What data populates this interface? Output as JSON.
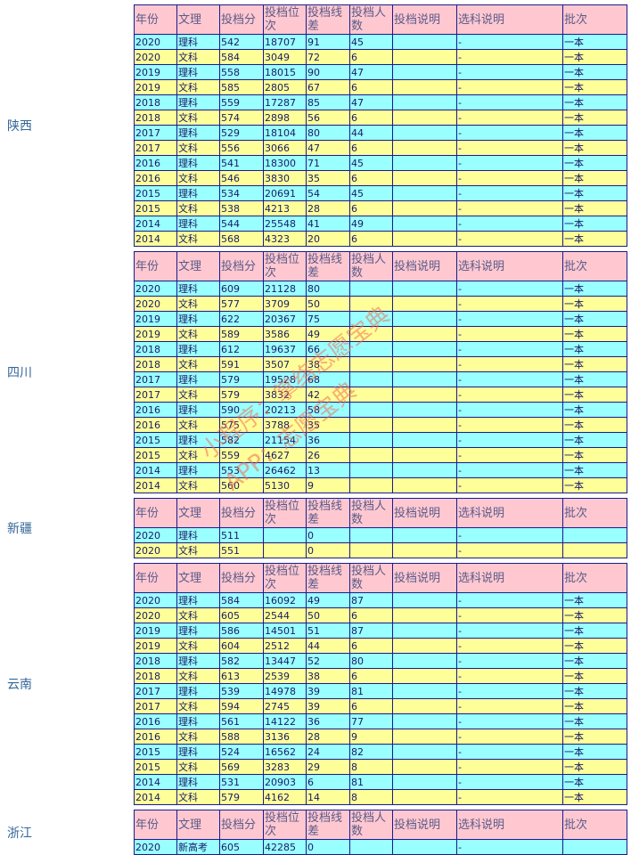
{
  "columns": [
    "年份",
    "文理",
    "投档分",
    "投档位次",
    "投档线差",
    "投档人数",
    "投档说明",
    "选科说明",
    "批次"
  ],
  "watermark": [
    "小程序：掌络志愿宝典",
    "APP：志愿宝典"
  ],
  "sections": [
    {
      "province": "陕西",
      "rows": [
        [
          "2020",
          "理科",
          "542",
          "18707",
          "91",
          "45",
          null,
          "-",
          "一本"
        ],
        [
          "2020",
          "文科",
          "584",
          "3049",
          "72",
          "6",
          null,
          "-",
          "一本"
        ],
        [
          "2019",
          "理科",
          "558",
          "18015",
          "90",
          "47",
          null,
          "-",
          "一本"
        ],
        [
          "2019",
          "文科",
          "585",
          "2805",
          "67",
          "6",
          null,
          "-",
          "一本"
        ],
        [
          "2018",
          "理科",
          "559",
          "17287",
          "85",
          "47",
          null,
          "-",
          "一本"
        ],
        [
          "2018",
          "文科",
          "574",
          "2898",
          "56",
          "6",
          null,
          "-",
          "一本"
        ],
        [
          "2017",
          "理科",
          "529",
          "18104",
          "80",
          "44",
          null,
          "-",
          "一本"
        ],
        [
          "2017",
          "文科",
          "556",
          "3066",
          "47",
          "6",
          null,
          "-",
          "一本"
        ],
        [
          "2016",
          "理科",
          "541",
          "18300",
          "71",
          "45",
          null,
          "-",
          "一本"
        ],
        [
          "2016",
          "文科",
          "546",
          "3830",
          "35",
          "6",
          null,
          "-",
          "一本"
        ],
        [
          "2015",
          "理科",
          "534",
          "20691",
          "54",
          "45",
          null,
          "-",
          "一本"
        ],
        [
          "2015",
          "文科",
          "538",
          "4213",
          "28",
          "6",
          null,
          "-",
          "一本"
        ],
        [
          "2014",
          "理科",
          "544",
          "25548",
          "41",
          "49",
          null,
          "-",
          "一本"
        ],
        [
          "2014",
          "文科",
          "568",
          "4323",
          "20",
          "6",
          null,
          "-",
          "一本"
        ]
      ]
    },
    {
      "province": "四川",
      "rows": [
        [
          "2020",
          "理科",
          "609",
          "21128",
          "80",
          null,
          null,
          "-",
          "一本"
        ],
        [
          "2020",
          "文科",
          "577",
          "3709",
          "50",
          null,
          null,
          "-",
          "一本"
        ],
        [
          "2019",
          "理科",
          "622",
          "20367",
          "75",
          null,
          null,
          "-",
          "一本"
        ],
        [
          "2019",
          "文科",
          "589",
          "3586",
          "49",
          null,
          null,
          "-",
          "一本"
        ],
        [
          "2018",
          "理科",
          "612",
          "19637",
          "66",
          null,
          null,
          "-",
          "一本"
        ],
        [
          "2018",
          "文科",
          "591",
          "3507",
          "38",
          null,
          null,
          "-",
          "一本"
        ],
        [
          "2017",
          "理科",
          "579",
          "19528",
          "68",
          null,
          null,
          "-",
          "一本"
        ],
        [
          "2017",
          "文科",
          "579",
          "3832",
          "42",
          null,
          null,
          "-",
          "一本"
        ],
        [
          "2016",
          "理科",
          "590",
          "20213",
          "58",
          null,
          null,
          "-",
          "一本"
        ],
        [
          "2016",
          "文科",
          "575",
          "3788",
          "35",
          null,
          null,
          "-",
          "一本"
        ],
        [
          "2015",
          "理科",
          "582",
          "21154",
          "36",
          null,
          null,
          "-",
          "一本"
        ],
        [
          "2015",
          "文科",
          "559",
          "4627",
          "26",
          null,
          null,
          "-",
          "一本"
        ],
        [
          "2014",
          "理科",
          "553",
          "26462",
          "13",
          null,
          null,
          "-",
          "一本"
        ],
        [
          "2014",
          "文科",
          "560",
          "5130",
          "9",
          null,
          null,
          "-",
          "一本"
        ]
      ]
    },
    {
      "province": "新疆",
      "rows": [
        [
          "2020",
          "理科",
          "511",
          null,
          "0",
          null,
          null,
          "-",
          null
        ],
        [
          "2020",
          "文科",
          "551",
          null,
          "0",
          null,
          null,
          "-",
          null
        ]
      ]
    },
    {
      "province": "云南",
      "rows": [
        [
          "2020",
          "理科",
          "584",
          "16092",
          "49",
          "87",
          null,
          "-",
          "一本"
        ],
        [
          "2020",
          "文科",
          "605",
          "2544",
          "50",
          "6",
          null,
          "-",
          "一本"
        ],
        [
          "2019",
          "理科",
          "586",
          "14501",
          "51",
          "87",
          null,
          "-",
          "一本"
        ],
        [
          "2019",
          "文科",
          "604",
          "2512",
          "44",
          "6",
          null,
          "-",
          "一本"
        ],
        [
          "2018",
          "理科",
          "582",
          "13447",
          "52",
          "80",
          null,
          "-",
          "一本"
        ],
        [
          "2018",
          "文科",
          "613",
          "2539",
          "38",
          "6",
          null,
          "-",
          "一本"
        ],
        [
          "2017",
          "理科",
          "539",
          "14978",
          "39",
          "81",
          null,
          "-",
          "一本"
        ],
        [
          "2017",
          "文科",
          "594",
          "2745",
          "39",
          "6",
          null,
          "-",
          "一本"
        ],
        [
          "2016",
          "理科",
          "561",
          "14122",
          "36",
          "77",
          null,
          "-",
          "一本"
        ],
        [
          "2016",
          "文科",
          "588",
          "3136",
          "28",
          "9",
          null,
          "-",
          "一本"
        ],
        [
          "2015",
          "理科",
          "524",
          "16562",
          "24",
          "82",
          null,
          "-",
          "一本"
        ],
        [
          "2015",
          "文科",
          "569",
          "3283",
          "29",
          "8",
          null,
          "-",
          "一本"
        ],
        [
          "2014",
          "理科",
          "531",
          "20903",
          "6",
          "81",
          null,
          "-",
          "一本"
        ],
        [
          "2014",
          "文科",
          "579",
          "4162",
          "14",
          "8",
          null,
          "-",
          "一本"
        ]
      ]
    },
    {
      "province": "浙江",
      "rows": [
        [
          "2020",
          "新高考",
          "605",
          "42285",
          "0",
          null,
          null,
          "-",
          null
        ]
      ]
    }
  ]
}
